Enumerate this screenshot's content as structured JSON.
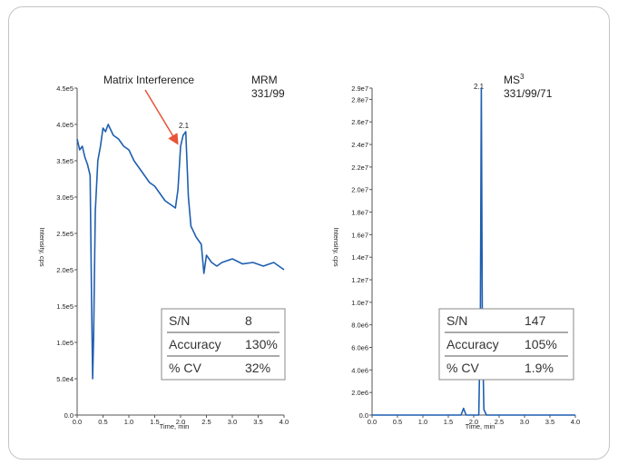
{
  "chart_data": [
    {
      "type": "line",
      "annotation": "Matrix Interference",
      "title_lines": [
        "MRM",
        "331/99"
      ],
      "peak_label": "2.1",
      "xlabel": "Time, min",
      "ylabel": "Intensity, cps",
      "xlim": [
        0.0,
        4.0
      ],
      "ylim": [
        0,
        450000
      ],
      "x_ticks": [
        "0.0",
        "0.5",
        "1.0",
        "1.5",
        "2.0",
        "2.5",
        "3.0",
        "3.5",
        "4.0"
      ],
      "y_tick_values": [
        0,
        50000,
        100000,
        150000,
        200000,
        250000,
        300000,
        350000,
        400000,
        450000
      ],
      "y_tick_labels": [
        "0.0",
        "5.0e4",
        "1.0e5",
        "1.5e5",
        "2.0e5",
        "2.5e5",
        "3.0e5",
        "3.5e5",
        "4.0e5",
        "4.5e5"
      ],
      "series": [
        {
          "color": "#1f5fb0",
          "x": [
            0.0,
            0.05,
            0.1,
            0.15,
            0.2,
            0.25,
            0.28,
            0.3,
            0.32,
            0.35,
            0.4,
            0.45,
            0.5,
            0.55,
            0.6,
            0.7,
            0.8,
            0.9,
            1.0,
            1.1,
            1.2,
            1.3,
            1.4,
            1.5,
            1.6,
            1.7,
            1.8,
            1.9,
            1.95,
            2.0,
            2.05,
            2.1,
            2.15,
            2.2,
            2.3,
            2.4,
            2.45,
            2.5,
            2.6,
            2.7,
            2.8,
            3.0,
            3.2,
            3.4,
            3.6,
            3.8,
            4.0
          ],
          "y": [
            380000,
            365000,
            370000,
            355000,
            345000,
            330000,
            150000,
            50000,
            110000,
            280000,
            350000,
            370000,
            395000,
            390000,
            400000,
            385000,
            380000,
            370000,
            365000,
            350000,
            340000,
            330000,
            320000,
            315000,
            305000,
            295000,
            290000,
            285000,
            310000,
            370000,
            385000,
            390000,
            300000,
            260000,
            245000,
            235000,
            195000,
            220000,
            210000,
            205000,
            210000,
            215000,
            208000,
            210000,
            205000,
            210000,
            200000
          ]
        }
      ],
      "table": [
        [
          "S/N",
          "8"
        ],
        [
          "Accuracy",
          "130%"
        ],
        [
          "% CV",
          "32%"
        ]
      ]
    },
    {
      "type": "line",
      "title_prefix": "MS",
      "title_sup": "3",
      "title_line2": "331/99/71",
      "peak_label": "2.1",
      "xlabel": "Time, min",
      "ylabel": "Intensity, cps",
      "xlim": [
        0.0,
        4.0
      ],
      "ylim": [
        0,
        29000000
      ],
      "x_ticks": [
        "0.0",
        "0.5",
        "1.0",
        "1.5",
        "2.0",
        "2.5",
        "3.0",
        "3.5",
        "4.0"
      ],
      "y_tick_values": [
        0,
        2000000,
        4000000,
        6000000,
        8000000,
        10000000,
        12000000,
        14000000,
        16000000,
        18000000,
        20000000,
        22000000,
        24000000,
        26000000,
        28000000,
        29000000
      ],
      "y_tick_labels": [
        "0.0",
        "2.0e6",
        "4.0e6",
        "6.0e6",
        "8.0e6",
        "1.0e7",
        "1.2e7",
        "1.4e7",
        "1.6e7",
        "1.8e7",
        "2.0e7",
        "2.2e7",
        "2.4e7",
        "2.6e7",
        "2.8e7",
        "2.9e7"
      ],
      "series": [
        {
          "color": "#1f5fb0",
          "x": [
            0.0,
            0.5,
            1.0,
            1.5,
            1.75,
            1.8,
            1.85,
            2.0,
            2.1,
            2.13,
            2.15,
            2.17,
            2.2,
            2.25,
            2.3,
            2.5,
            3.0,
            3.5,
            4.0
          ],
          "y": [
            0,
            0,
            0,
            0,
            0,
            600000,
            0,
            0,
            0,
            8000000,
            29000000,
            8000000,
            500000,
            0,
            0,
            0,
            0,
            0,
            0
          ]
        }
      ],
      "table": [
        [
          "S/N",
          "147"
        ],
        [
          "Accuracy",
          "105%"
        ],
        [
          "% CV",
          "1.9%"
        ]
      ]
    }
  ]
}
